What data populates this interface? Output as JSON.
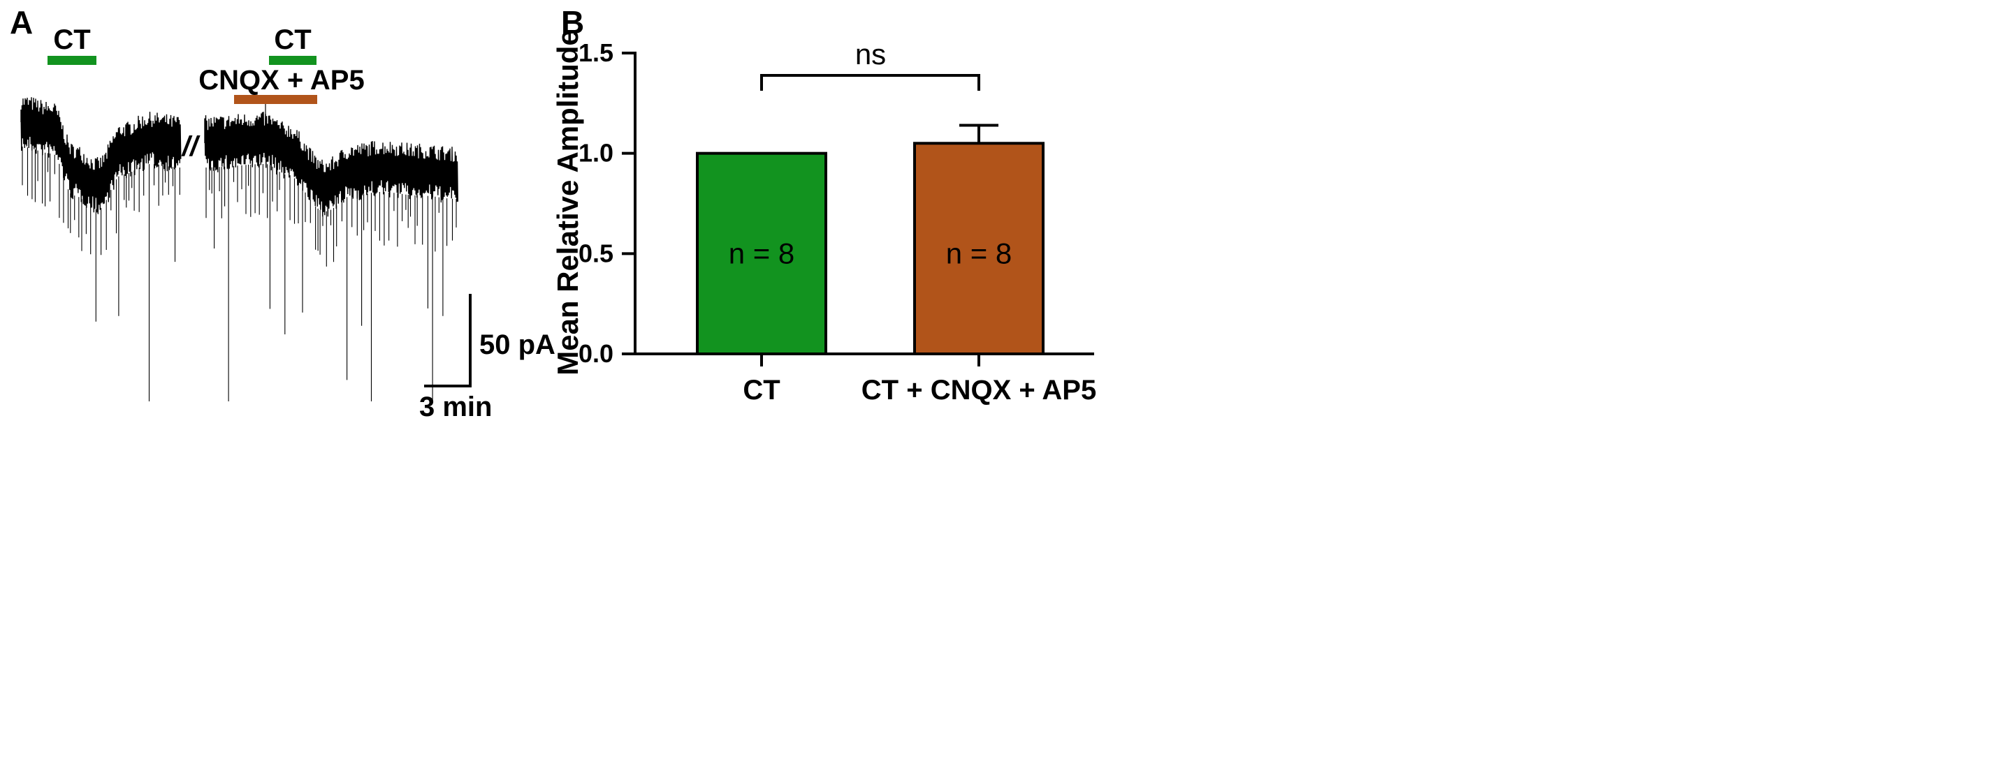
{
  "panel_a": {
    "label": "A",
    "marker_ct_1": "CT",
    "marker_ct_2": "CT",
    "marker_drug": "CNQX + AP5",
    "break_symbol": "//",
    "scale_y": "50 pA",
    "scale_x": "3 min",
    "colors": {
      "ct": "#12931f",
      "drug": "#b1541a",
      "trace": "#000000"
    }
  },
  "panel_b": {
    "label": "B"
  },
  "chart_data": {
    "type": "bar",
    "title": "",
    "xlabel": "",
    "ylabel": "Mean Relative Amplitude",
    "categories": [
      "CT",
      "CT + CNQX + AP5"
    ],
    "values": [
      1.0,
      1.05
    ],
    "errors": [
      0,
      0.09
    ],
    "n_labels": [
      "n = 8",
      "n = 8"
    ],
    "colors": [
      "#12931f",
      "#b1541a"
    ],
    "ylim": [
      0,
      1.5
    ],
    "yticks": [
      "0.0",
      "0.5",
      "1.0",
      "1.5"
    ],
    "significance": "ns",
    "grid": false
  }
}
